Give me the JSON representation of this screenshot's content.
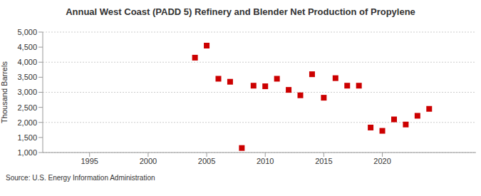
{
  "chart_data": {
    "type": "scatter",
    "title": "Annual West Coast (PADD 5) Refinery and Blender Net Production of Propylene",
    "y_label": "Thousand Barrels",
    "source": "Source: U.S. Energy Information Administration",
    "x": [
      2004,
      2005,
      2006,
      2007,
      2008,
      2009,
      2010,
      2011,
      2012,
      2013,
      2014,
      2015,
      2016,
      2017,
      2018,
      2019,
      2020,
      2021,
      2022,
      2023,
      2024
    ],
    "values": [
      4150,
      4550,
      3450,
      3350,
      1150,
      3220,
      3200,
      3450,
      3080,
      2900,
      3600,
      2820,
      3470,
      3220,
      3220,
      1830,
      1720,
      2100,
      1930,
      2220,
      2450
    ],
    "color": "#cc0000",
    "marker": "square",
    "xlim": [
      1991,
      2028
    ],
    "xticks": [
      1995,
      2000,
      2005,
      2010,
      2015,
      2020
    ],
    "ylim": [
      1000,
      5000
    ],
    "yticks": [
      {
        "value": 1000,
        "label": "1,000"
      },
      {
        "value": 1500,
        "label": "1,500"
      },
      {
        "value": 2000,
        "label": "2,000"
      },
      {
        "value": 2500,
        "label": "2,500"
      },
      {
        "value": 3000,
        "label": "3,000"
      },
      {
        "value": 3500,
        "label": "3,500"
      },
      {
        "value": 4000,
        "label": "4,000"
      },
      {
        "value": 4500,
        "label": "4,500"
      },
      {
        "value": 5000,
        "label": "5,000"
      }
    ],
    "grid": true
  }
}
